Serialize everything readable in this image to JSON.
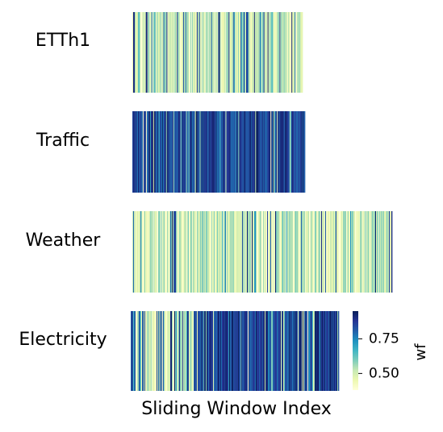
{
  "chart_data": {
    "type": "heatmap",
    "title": "",
    "xlabel": "Sliding Window Index",
    "colormap": "YlGnBu",
    "colorbar": {
      "label": "wf",
      "range": [
        0.38,
        0.95
      ],
      "ticks": [
        0.5,
        0.75
      ],
      "tick_labels": [
        "0.50",
        "0.75"
      ]
    },
    "panels": [
      {
        "name": "ETTh1",
        "windows": 214,
        "mean_value": 0.55,
        "high_fraction": 0.18,
        "seed": 11
      },
      {
        "name": "Traffic",
        "windows": 215,
        "mean_value": 0.88,
        "high_fraction": 0.93,
        "seed": 23
      },
      {
        "name": "Weather",
        "windows": 322,
        "mean_value": 0.47,
        "high_fraction": 0.05,
        "seed": 37
      },
      {
        "name": "Electricity",
        "windows": 258,
        "mean_value": 0.72,
        "high_fraction": 0.72,
        "seed": 53
      }
    ]
  }
}
